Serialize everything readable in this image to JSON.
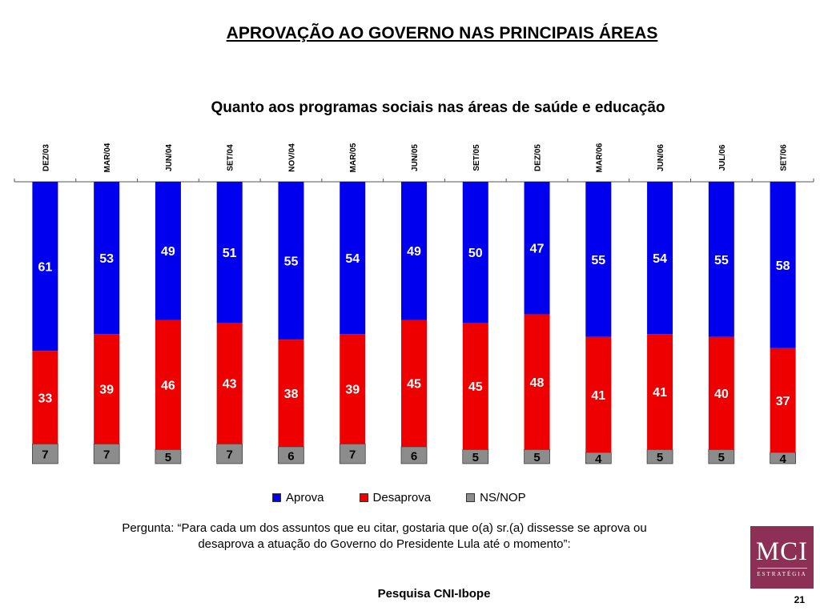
{
  "title": "APROVAÇÃO AO GOVERNO NAS PRINCIPAIS ÁREAS",
  "subtitle": "Quanto aos programas sociais nas áreas de saúde e educação",
  "chart_data": {
    "type": "bar",
    "stacked": true,
    "categories": [
      "DEZ/03",
      "MAR/04",
      "JUN/04",
      "SET/04",
      "NOV/04",
      "MAR/05",
      "JUN/05",
      "SET/05",
      "DEZ/05",
      "MAR/06",
      "JUN/06",
      "JUL/06",
      "SET/06"
    ],
    "series": [
      {
        "name": "Aprova",
        "color": "#0000ee",
        "values": [
          61,
          53,
          49,
          51,
          55,
          54,
          49,
          50,
          47,
          55,
          54,
          55,
          58
        ]
      },
      {
        "name": "Desaprova",
        "color": "#ee0000",
        "values": [
          33,
          39,
          46,
          43,
          38,
          39,
          45,
          45,
          48,
          41,
          41,
          40,
          37
        ]
      },
      {
        "name": "NS/NOP",
        "color": "#8c8c8c",
        "values": [
          7,
          7,
          5,
          7,
          6,
          7,
          6,
          5,
          5,
          4,
          5,
          5,
          4
        ]
      }
    ],
    "ylim": [
      0,
      100
    ],
    "legend_position": "bottom",
    "grid": false
  },
  "legend": [
    "Aprova",
    "Desaprova",
    "NS/NOP"
  ],
  "question": "Pergunta: “Para cada um dos assuntos que eu citar, gostaria que o(a) sr.(a) dissesse se aprova ou desaprova a atuação do Governo do Presidente Lula até o momento”:",
  "source": "Pesquisa CNI-Ibope",
  "page_number": "21",
  "logo": {
    "main": "MCI",
    "sub": "ESTRATÉGIA",
    "color": "#8e2f55"
  }
}
